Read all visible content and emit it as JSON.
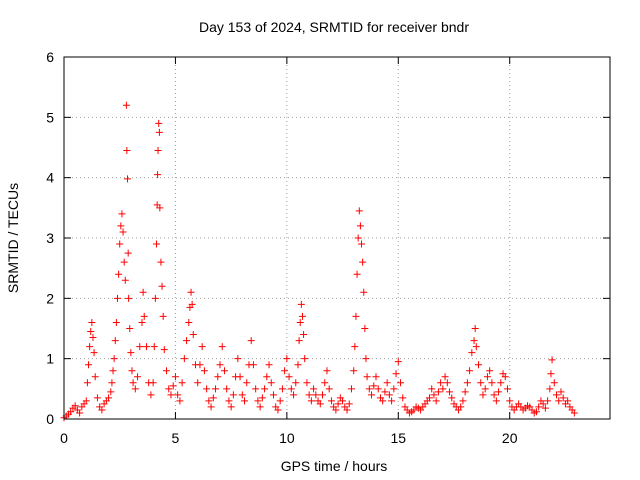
{
  "chart_data": {
    "type": "scatter",
    "title": "Day 153 of 2024, SRMTID for receiver bndr",
    "xlabel": "GPS time / hours",
    "ylabel": "SRMTID / TECUs",
    "xlim": [
      0,
      24.5
    ],
    "ylim": [
      0,
      6
    ],
    "xticks": [
      0,
      5,
      10,
      15,
      20
    ],
    "yticks": [
      0,
      1,
      2,
      3,
      4,
      5,
      6
    ],
    "xtick_labels": [
      "0",
      "5",
      "10",
      "15",
      "20"
    ],
    "ytick_labels": [
      "0",
      "1",
      "2",
      "3",
      "4",
      "5",
      "6"
    ],
    "grid": true,
    "marker": "+",
    "series": [
      {
        "name": "SRMTID",
        "color": "#ff0000",
        "points": [
          [
            0.0,
            0.02
          ],
          [
            0.1,
            0.05
          ],
          [
            0.2,
            0.08
          ],
          [
            0.3,
            0.12
          ],
          [
            0.4,
            0.18
          ],
          [
            0.5,
            0.22
          ],
          [
            0.6,
            0.15
          ],
          [
            0.7,
            0.1
          ],
          [
            0.8,
            0.2
          ],
          [
            0.9,
            0.25
          ],
          [
            1.0,
            0.3
          ],
          [
            1.05,
            0.6
          ],
          [
            1.1,
            0.9
          ],
          [
            1.15,
            1.2
          ],
          [
            1.2,
            1.45
          ],
          [
            1.25,
            1.6
          ],
          [
            1.3,
            1.35
          ],
          [
            1.35,
            1.1
          ],
          [
            1.4,
            0.7
          ],
          [
            1.5,
            0.35
          ],
          [
            1.6,
            0.2
          ],
          [
            1.7,
            0.15
          ],
          [
            1.8,
            0.25
          ],
          [
            1.9,
            0.3
          ],
          [
            2.0,
            0.35
          ],
          [
            2.1,
            0.45
          ],
          [
            2.15,
            0.6
          ],
          [
            2.2,
            0.8
          ],
          [
            2.25,
            1.0
          ],
          [
            2.3,
            1.3
          ],
          [
            2.35,
            1.6
          ],
          [
            2.4,
            2.0
          ],
          [
            2.45,
            2.4
          ],
          [
            2.5,
            2.9
          ],
          [
            2.55,
            3.2
          ],
          [
            2.6,
            3.4
          ],
          [
            2.65,
            3.1
          ],
          [
            2.7,
            2.6
          ],
          [
            2.75,
            2.3
          ],
          [
            2.8,
            5.2
          ],
          [
            2.82,
            4.45
          ],
          [
            2.85,
            3.98
          ],
          [
            2.88,
            2.75
          ],
          [
            2.9,
            2.0
          ],
          [
            2.95,
            1.5
          ],
          [
            3.0,
            1.1
          ],
          [
            3.05,
            0.8
          ],
          [
            3.1,
            0.6
          ],
          [
            3.2,
            0.5
          ],
          [
            3.3,
            0.7
          ],
          [
            3.4,
            1.2
          ],
          [
            3.5,
            1.6
          ],
          [
            3.55,
            2.1
          ],
          [
            3.6,
            1.7
          ],
          [
            3.7,
            1.2
          ],
          [
            3.8,
            0.6
          ],
          [
            3.9,
            0.4
          ],
          [
            4.0,
            0.6
          ],
          [
            4.05,
            1.2
          ],
          [
            4.1,
            2.0
          ],
          [
            4.15,
            2.9
          ],
          [
            4.18,
            3.55
          ],
          [
            4.2,
            4.05
          ],
          [
            4.22,
            4.45
          ],
          [
            4.25,
            4.9
          ],
          [
            4.28,
            4.75
          ],
          [
            4.3,
            3.5
          ],
          [
            4.35,
            2.6
          ],
          [
            4.4,
            2.2
          ],
          [
            4.45,
            1.7
          ],
          [
            4.5,
            1.15
          ],
          [
            4.6,
            0.8
          ],
          [
            4.7,
            0.5
          ],
          [
            4.8,
            0.4
          ],
          [
            4.9,
            0.55
          ],
          [
            5.0,
            0.7
          ],
          [
            5.1,
            0.4
          ],
          [
            5.2,
            0.3
          ],
          [
            5.3,
            0.6
          ],
          [
            5.4,
            1.0
          ],
          [
            5.5,
            1.3
          ],
          [
            5.6,
            1.6
          ],
          [
            5.65,
            1.85
          ],
          [
            5.7,
            2.1
          ],
          [
            5.75,
            1.9
          ],
          [
            5.8,
            1.4
          ],
          [
            5.9,
            0.9
          ],
          [
            6.0,
            0.6
          ],
          [
            6.1,
            0.9
          ],
          [
            6.2,
            1.2
          ],
          [
            6.3,
            0.8
          ],
          [
            6.4,
            0.5
          ],
          [
            6.5,
            0.3
          ],
          [
            6.6,
            0.2
          ],
          [
            6.7,
            0.35
          ],
          [
            6.8,
            0.5
          ],
          [
            6.9,
            0.7
          ],
          [
            7.0,
            0.9
          ],
          [
            7.1,
            1.2
          ],
          [
            7.2,
            0.8
          ],
          [
            7.3,
            0.5
          ],
          [
            7.4,
            0.3
          ],
          [
            7.5,
            0.2
          ],
          [
            7.6,
            0.4
          ],
          [
            7.7,
            0.7
          ],
          [
            7.8,
            1.0
          ],
          [
            7.9,
            0.7
          ],
          [
            8.0,
            0.4
          ],
          [
            8.1,
            0.3
          ],
          [
            8.2,
            0.6
          ],
          [
            8.3,
            0.9
          ],
          [
            8.4,
            1.3
          ],
          [
            8.5,
            0.9
          ],
          [
            8.6,
            0.5
          ],
          [
            8.7,
            0.3
          ],
          [
            8.8,
            0.2
          ],
          [
            8.9,
            0.35
          ],
          [
            9.0,
            0.5
          ],
          [
            9.1,
            0.7
          ],
          [
            9.2,
            0.9
          ],
          [
            9.3,
            0.6
          ],
          [
            9.4,
            0.4
          ],
          [
            9.5,
            0.2
          ],
          [
            9.6,
            0.15
          ],
          [
            9.7,
            0.3
          ],
          [
            9.8,
            0.5
          ],
          [
            9.9,
            0.8
          ],
          [
            10.0,
            1.0
          ],
          [
            10.1,
            0.7
          ],
          [
            10.2,
            0.5
          ],
          [
            10.3,
            0.4
          ],
          [
            10.4,
            0.6
          ],
          [
            10.5,
            0.9
          ],
          [
            10.55,
            1.3
          ],
          [
            10.6,
            1.6
          ],
          [
            10.65,
            1.9
          ],
          [
            10.7,
            1.7
          ],
          [
            10.75,
            1.4
          ],
          [
            10.8,
            1.0
          ],
          [
            10.9,
            0.6
          ],
          [
            11.0,
            0.4
          ],
          [
            11.1,
            0.3
          ],
          [
            11.2,
            0.5
          ],
          [
            11.3,
            0.4
          ],
          [
            11.4,
            0.3
          ],
          [
            11.5,
            0.25
          ],
          [
            11.6,
            0.4
          ],
          [
            11.7,
            0.6
          ],
          [
            11.8,
            0.8
          ],
          [
            11.9,
            0.5
          ],
          [
            12.0,
            0.3
          ],
          [
            12.1,
            0.2
          ],
          [
            12.2,
            0.15
          ],
          [
            12.3,
            0.25
          ],
          [
            12.4,
            0.35
          ],
          [
            12.5,
            0.3
          ],
          [
            12.6,
            0.2
          ],
          [
            12.7,
            0.15
          ],
          [
            12.8,
            0.25
          ],
          [
            12.9,
            0.5
          ],
          [
            13.0,
            0.8
          ],
          [
            13.05,
            1.2
          ],
          [
            13.1,
            1.7
          ],
          [
            13.15,
            2.4
          ],
          [
            13.2,
            3.0
          ],
          [
            13.25,
            3.45
          ],
          [
            13.3,
            3.2
          ],
          [
            13.35,
            2.9
          ],
          [
            13.4,
            2.6
          ],
          [
            13.45,
            2.1
          ],
          [
            13.5,
            1.5
          ],
          [
            13.55,
            1.0
          ],
          [
            13.6,
            0.7
          ],
          [
            13.7,
            0.5
          ],
          [
            13.8,
            0.4
          ],
          [
            13.9,
            0.55
          ],
          [
            14.0,
            0.7
          ],
          [
            14.1,
            0.5
          ],
          [
            14.2,
            0.35
          ],
          [
            14.3,
            0.3
          ],
          [
            14.4,
            0.45
          ],
          [
            14.5,
            0.6
          ],
          [
            14.6,
            0.4
          ],
          [
            14.7,
            0.3
          ],
          [
            14.8,
            0.5
          ],
          [
            14.9,
            0.75
          ],
          [
            15.0,
            0.95
          ],
          [
            15.1,
            0.6
          ],
          [
            15.2,
            0.35
          ],
          [
            15.3,
            0.2
          ],
          [
            15.4,
            0.15
          ],
          [
            15.5,
            0.1
          ],
          [
            15.6,
            0.12
          ],
          [
            15.7,
            0.15
          ],
          [
            15.8,
            0.2
          ],
          [
            15.9,
            0.18
          ],
          [
            16.0,
            0.15
          ],
          [
            16.1,
            0.2
          ],
          [
            16.2,
            0.25
          ],
          [
            16.3,
            0.3
          ],
          [
            16.4,
            0.35
          ],
          [
            16.5,
            0.5
          ],
          [
            16.6,
            0.4
          ],
          [
            16.7,
            0.3
          ],
          [
            16.8,
            0.45
          ],
          [
            16.9,
            0.6
          ],
          [
            17.0,
            0.5
          ],
          [
            17.1,
            0.7
          ],
          [
            17.2,
            0.6
          ],
          [
            17.3,
            0.45
          ],
          [
            17.4,
            0.35
          ],
          [
            17.5,
            0.25
          ],
          [
            17.6,
            0.2
          ],
          [
            17.7,
            0.15
          ],
          [
            17.8,
            0.2
          ],
          [
            17.9,
            0.3
          ],
          [
            18.0,
            0.45
          ],
          [
            18.1,
            0.6
          ],
          [
            18.2,
            0.8
          ],
          [
            18.3,
            1.1
          ],
          [
            18.4,
            1.3
          ],
          [
            18.45,
            1.5
          ],
          [
            18.5,
            1.2
          ],
          [
            18.6,
            0.9
          ],
          [
            18.7,
            0.6
          ],
          [
            18.8,
            0.4
          ],
          [
            18.9,
            0.5
          ],
          [
            19.0,
            0.7
          ],
          [
            19.1,
            0.8
          ],
          [
            19.2,
            0.6
          ],
          [
            19.3,
            0.4
          ],
          [
            19.4,
            0.3
          ],
          [
            19.5,
            0.45
          ],
          [
            19.6,
            0.6
          ],
          [
            19.7,
            0.75
          ],
          [
            19.8,
            0.7
          ],
          [
            19.9,
            0.5
          ],
          [
            20.0,
            0.3
          ],
          [
            20.1,
            0.2
          ],
          [
            20.2,
            0.15
          ],
          [
            20.3,
            0.2
          ],
          [
            20.4,
            0.25
          ],
          [
            20.5,
            0.2
          ],
          [
            20.6,
            0.15
          ],
          [
            20.7,
            0.18
          ],
          [
            20.8,
            0.22
          ],
          [
            20.9,
            0.2
          ],
          [
            21.0,
            0.15
          ],
          [
            21.1,
            0.1
          ],
          [
            21.2,
            0.12
          ],
          [
            21.3,
            0.2
          ],
          [
            21.4,
            0.3
          ],
          [
            21.5,
            0.25
          ],
          [
            21.6,
            0.18
          ],
          [
            21.7,
            0.3
          ],
          [
            21.8,
            0.5
          ],
          [
            21.85,
            0.75
          ],
          [
            21.9,
            0.98
          ],
          [
            22.0,
            0.6
          ],
          [
            22.1,
            0.4
          ],
          [
            22.2,
            0.3
          ],
          [
            22.3,
            0.45
          ],
          [
            22.4,
            0.35
          ],
          [
            22.5,
            0.25
          ],
          [
            22.6,
            0.3
          ],
          [
            22.7,
            0.2
          ],
          [
            22.8,
            0.15
          ],
          [
            22.9,
            0.1
          ]
        ]
      }
    ]
  }
}
